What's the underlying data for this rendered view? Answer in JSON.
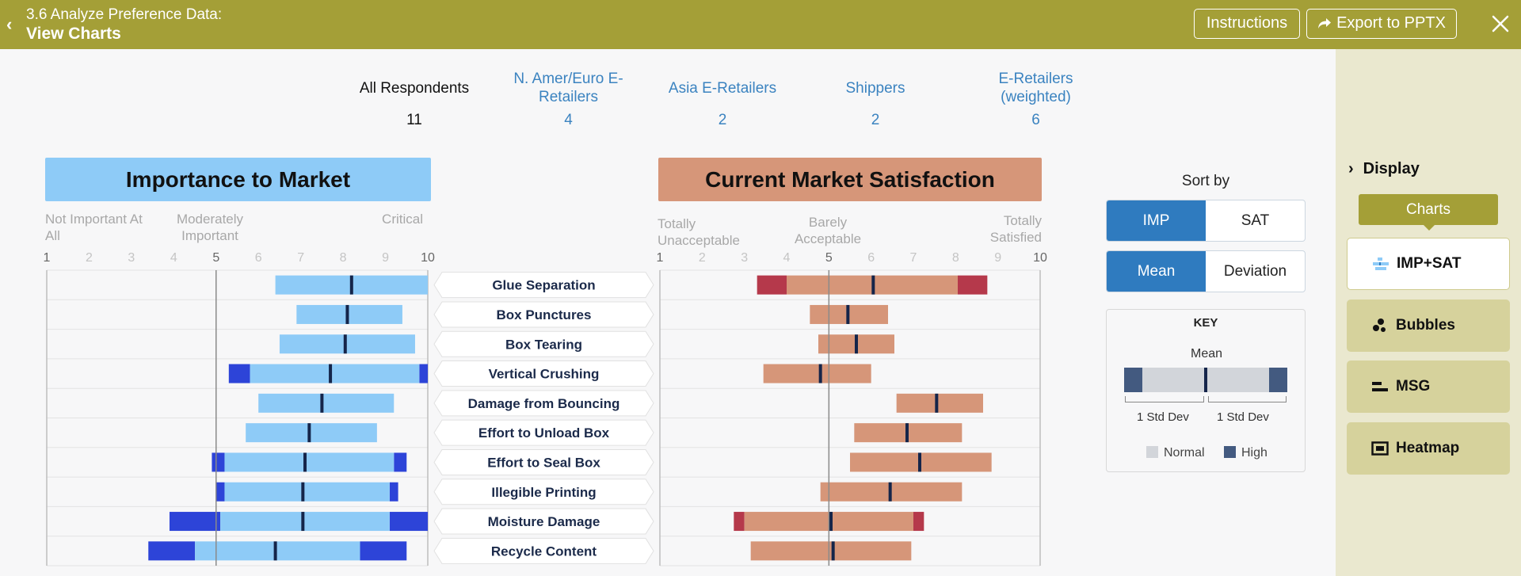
{
  "header": {
    "subtitle": "3.6 Analyze Preference Data:",
    "title": "View Charts",
    "instructions_label": "Instructions",
    "export_label": "Export to PPTX"
  },
  "segments": [
    {
      "label": "All Respondents",
      "count": "11",
      "active": true
    },
    {
      "label": "N. Amer/Euro E-Retailers",
      "count": "4",
      "active": false
    },
    {
      "label": "Asia E-Retailers",
      "count": "2",
      "active": false
    },
    {
      "label": "Shippers",
      "count": "2",
      "active": false
    },
    {
      "label": "E-Retailers (weighted)",
      "count": "6",
      "active": false
    }
  ],
  "importance_panel": {
    "title": "Importance to Market",
    "scale_low": "Not Important At All",
    "scale_mid": "Moderately Important",
    "scale_high": "Critical"
  },
  "satisfaction_panel": {
    "title": "Current Market Satisfaction",
    "scale_low": "Totally Unacceptable",
    "scale_mid": "Barely Acceptable",
    "scale_high": "Totally Satisfied"
  },
  "chart_data": [
    {
      "type": "bar",
      "title": "Importance to Market",
      "xlim": [
        1,
        10
      ],
      "ticks": [
        "1",
        "2",
        "3",
        "4",
        "5",
        "6",
        "7",
        "8",
        "9",
        "10"
      ],
      "categories": [
        "Glue Separation",
        "Box Punctures",
        "Box Tearing",
        "Vertical Crushing",
        "Damage from Bouncing",
        "Effort to Unload Box",
        "Effort to Seal Box",
        "Illegible Printing",
        "Moisture Damage",
        "Recycle Content"
      ],
      "mean": [
        8.2,
        8.1,
        8.05,
        7.7,
        7.5,
        7.2,
        7.1,
        7.05,
        7.05,
        6.4
      ],
      "normal_low": [
        6.4,
        6.9,
        6.5,
        5.8,
        6.0,
        5.7,
        5.2,
        5.2,
        5.1,
        4.5
      ],
      "normal_high": [
        10.0,
        9.4,
        9.7,
        9.8,
        9.2,
        8.8,
        9.2,
        9.1,
        9.1,
        8.4
      ],
      "high_low": [
        null,
        null,
        null,
        5.3,
        null,
        null,
        4.9,
        5.0,
        3.9,
        3.4
      ],
      "high_high": [
        null,
        null,
        null,
        10.0,
        null,
        null,
        9.5,
        9.3,
        10.0,
        9.5
      ],
      "reference_line": 5
    },
    {
      "type": "bar",
      "title": "Current Market Satisfaction",
      "xlim": [
        1,
        10
      ],
      "ticks": [
        "1",
        "2",
        "3",
        "4",
        "5",
        "6",
        "7",
        "8",
        "9",
        "10"
      ],
      "categories": [
        "Glue Separation",
        "Box Punctures",
        "Box Tearing",
        "Vertical Crushing",
        "Damage from Bouncing",
        "Effort to Unload Box",
        "Effort to Seal Box",
        "Illegible Printing",
        "Moisture Damage",
        "Recycle Content"
      ],
      "mean": [
        6.05,
        5.45,
        5.65,
        4.8,
        7.55,
        6.85,
        7.15,
        6.45,
        5.05,
        5.1
      ],
      "normal_low": [
        4.0,
        4.55,
        4.75,
        3.45,
        6.6,
        5.6,
        5.5,
        4.8,
        3.0,
        3.15
      ],
      "normal_high": [
        8.05,
        6.4,
        6.55,
        6.0,
        8.65,
        8.15,
        8.85,
        8.15,
        7.0,
        6.95
      ],
      "high_low": [
        3.3,
        null,
        null,
        null,
        null,
        null,
        null,
        null,
        2.75,
        null
      ],
      "high_high": [
        8.75,
        null,
        null,
        null,
        null,
        null,
        null,
        null,
        7.25,
        null
      ],
      "reference_line": 5
    }
  ],
  "sort": {
    "title": "Sort by",
    "options": [
      "IMP",
      "SAT"
    ],
    "selected": "IMP",
    "stat_options": [
      "Mean",
      "Deviation"
    ],
    "stat_selected": "Mean"
  },
  "key": {
    "title": "KEY",
    "mean_label": "Mean",
    "std_dev_left": "1 Std Dev",
    "std_dev_right": "1 Std Dev",
    "normal_label": "Normal",
    "high_label": "High"
  },
  "sidebar": {
    "display_label": "Display",
    "charts_label": "Charts",
    "items": [
      {
        "label": "IMP+SAT",
        "icon": "imp-sat-icon",
        "selected": true
      },
      {
        "label": "Bubbles",
        "icon": "bubbles-icon",
        "selected": false
      },
      {
        "label": "MSG",
        "icon": "msg-icon",
        "selected": false
      },
      {
        "label": "Heatmap",
        "icon": "heatmap-icon",
        "selected": false
      }
    ]
  },
  "colors": {
    "header": "#a49f37",
    "imp_normal": "#8ecbf7",
    "imp_high": "#2d44d8",
    "sat_normal": "#d69679",
    "sat_high": "#b5394b",
    "mean_marker": "#15254a",
    "toggle_on": "#2f7bbf"
  }
}
